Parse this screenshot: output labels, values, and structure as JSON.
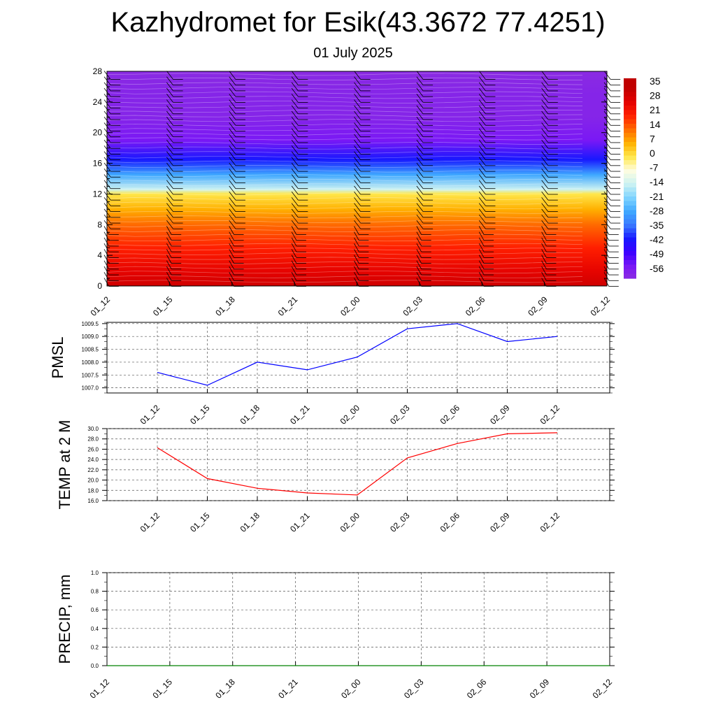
{
  "title": "Kazhydromet for Esik(43.3672 77.4251)",
  "subtitle": "01 July 2025",
  "time_labels": [
    "01_12",
    "01_15",
    "01_18",
    "01_21",
    "02_00",
    "02_03",
    "02_06",
    "02_09",
    "02_12"
  ],
  "colors": {
    "pmsl_line": "#0000ff",
    "temp_line": "#ff0000",
    "precip_line": "#008000",
    "grid": "#555555"
  },
  "chart_data": [
    {
      "type": "heatmap",
      "panel": "upper-air temperature cross-section with wind barbs",
      "x": [
        "01_12",
        "01_15",
        "01_18",
        "01_21",
        "02_00",
        "02_03",
        "02_06",
        "02_09",
        "02_12"
      ],
      "y_ticks": [
        0,
        4,
        8,
        12,
        16,
        20,
        24,
        28
      ],
      "ylim": [
        0,
        28
      ],
      "colorbar_labels": [
        "35",
        "28",
        "21",
        "14",
        "7",
        "0",
        "-7",
        "-14",
        "-21",
        "-28",
        "-35",
        "-42",
        "-49",
        "-56"
      ],
      "temperature_profile": [
        {
          "level": 0,
          "value": 32
        },
        {
          "level": 2,
          "value": 27
        },
        {
          "level": 5,
          "value": 21
        },
        {
          "level": 8,
          "value": 14
        },
        {
          "level": 10,
          "value": 7
        },
        {
          "level": 12,
          "value": 0
        },
        {
          "level": 12.6,
          "value": -14
        },
        {
          "level": 14.5,
          "value": -28
        },
        {
          "level": 16.5,
          "value": -42
        },
        {
          "level": 19,
          "value": -56
        },
        {
          "level": 22,
          "value": -60
        },
        {
          "level": 25,
          "value": -60
        },
        {
          "level": 28,
          "value": -62
        }
      ]
    },
    {
      "type": "line",
      "ylabel": "PMSL",
      "categories": [
        "01_12",
        "01_15",
        "01_18",
        "01_21",
        "02_00",
        "02_03",
        "02_06",
        "02_09",
        "02_12"
      ],
      "series": [
        {
          "values": [
            1007.6,
            1007.1,
            1008.0,
            1007.7,
            1008.2,
            1009.3,
            1009.5,
            1008.8,
            1009.0
          ]
        }
      ],
      "ylim": [
        1006.8,
        1009.55
      ],
      "y_ticks": [
        "1007.0",
        "1007.5",
        "1008.0",
        "1008.5",
        "1009.0",
        "1009.5"
      ],
      "grid": true
    },
    {
      "type": "line",
      "ylabel": "TEMP at 2 M",
      "categories": [
        "01_12",
        "01_15",
        "01_18",
        "01_21",
        "02_00",
        "02_03",
        "02_06",
        "02_09",
        "02_12"
      ],
      "series": [
        {
          "values": [
            26.3,
            20.3,
            18.4,
            17.5,
            17.1,
            24.3,
            27.1,
            29.0,
            29.2
          ]
        }
      ],
      "ylim": [
        16,
        30
      ],
      "y_ticks": [
        "16.0",
        "18.0",
        "20.0",
        "22.0",
        "24.0",
        "26.0",
        "28.0",
        "30.0"
      ],
      "grid": true
    },
    {
      "type": "line",
      "ylabel": "PRECIP, mm",
      "categories": [
        "01_12",
        "01_15",
        "01_18",
        "01_21",
        "02_00",
        "02_03",
        "02_06",
        "02_09",
        "02_12"
      ],
      "series": [
        {
          "values": [
            0,
            0,
            0,
            0,
            0,
            0,
            0,
            0,
            0
          ]
        }
      ],
      "ylim": [
        0,
        1
      ],
      "y_ticks": [
        "0.0",
        "0.2",
        "0.4",
        "0.6",
        "0.8",
        "1.0"
      ],
      "grid": true
    }
  ]
}
